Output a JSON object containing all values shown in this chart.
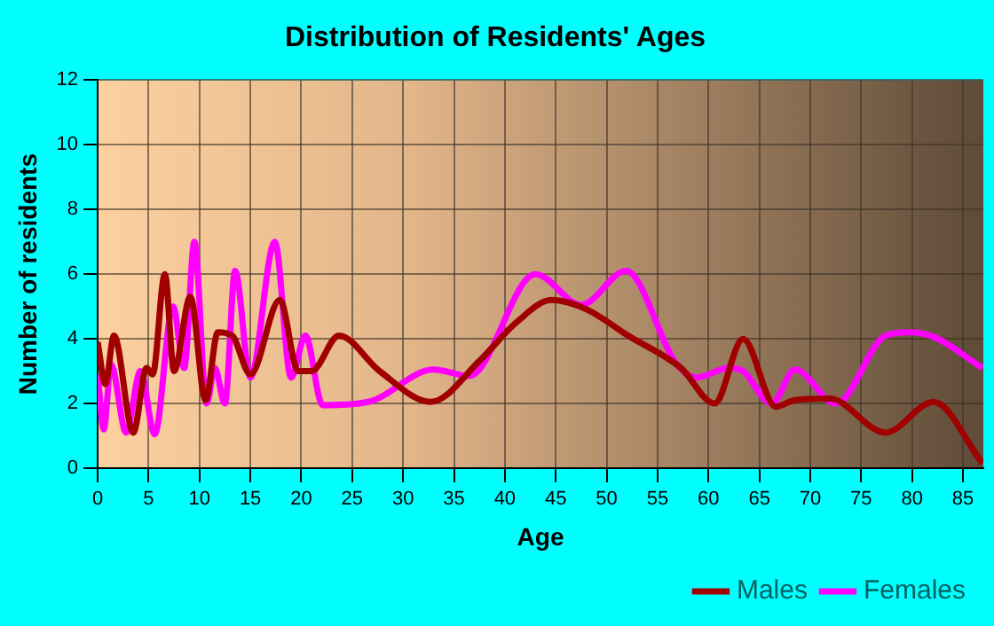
{
  "chart_data": {
    "type": "line",
    "title": "Distribution of Residents' Ages",
    "xlabel": "Age",
    "ylabel": "Number of residents",
    "xlim": [
      0,
      87
    ],
    "xticks": [
      0,
      5,
      10,
      15,
      20,
      25,
      30,
      35,
      40,
      45,
      50,
      55,
      60,
      65,
      70,
      75,
      80,
      85
    ],
    "ylim": [
      0,
      12
    ],
    "yticks": [
      0,
      2,
      4,
      6,
      8,
      10,
      12
    ],
    "grid": true,
    "legend": "bottom right",
    "marker": "none",
    "line_style": "solid",
    "series": [
      {
        "name": "Males",
        "color": "#a00000",
        "x": [
          0,
          0.75,
          1.6,
          3.5,
          4.8,
          5.4,
          6.6,
          7.5,
          9.1,
          10.6,
          11.8,
          13.2,
          15,
          17.9,
          19.7,
          21,
          23.7,
          27.7,
          32.7,
          37.6,
          41.1,
          44.6,
          48.1,
          52.1,
          57.3,
          60.6,
          63.4,
          66.6,
          68.4,
          71.9,
          77.4,
          82.1,
          86.9
        ],
        "values": [
          3.9,
          2.6,
          4.1,
          1.1,
          3.1,
          2.9,
          6.0,
          3.0,
          5.3,
          2.1,
          4.2,
          4.1,
          2.9,
          5.2,
          3.0,
          3.0,
          4.1,
          3.0,
          2.05,
          3.35,
          4.5,
          5.2,
          4.9,
          4.1,
          3.1,
          2.0,
          4.0,
          1.9,
          2.1,
          2.15,
          1.1,
          2.05,
          0.15
        ]
      },
      {
        "name": "Females",
        "color": "#ff00ff",
        "x": [
          0,
          0.6,
          1.3,
          2.8,
          4.2,
          5.6,
          7.4,
          8.5,
          9.5,
          10.7,
          11.5,
          12.5,
          13.5,
          15,
          17.4,
          19,
          20.4,
          22.1,
          26.6,
          33,
          36.5,
          43,
          47.5,
          51.9,
          56.8,
          58.8,
          62,
          63.4,
          66.2,
          68.5,
          72.5,
          77.4,
          79.7,
          82.2,
          86.9
        ],
        "values": [
          2.9,
          1.2,
          3.2,
          1.1,
          3.0,
          1.05,
          5.0,
          3.1,
          7.0,
          2.0,
          3.1,
          2.0,
          6.1,
          2.8,
          7.0,
          2.8,
          4.1,
          1.95,
          2.05,
          3.05,
          2.85,
          6.0,
          5.05,
          6.1,
          3.25,
          2.8,
          3.1,
          3.0,
          2.0,
          3.05,
          2.0,
          4.1,
          4.2,
          4.05,
          3.1
        ]
      }
    ]
  }
}
